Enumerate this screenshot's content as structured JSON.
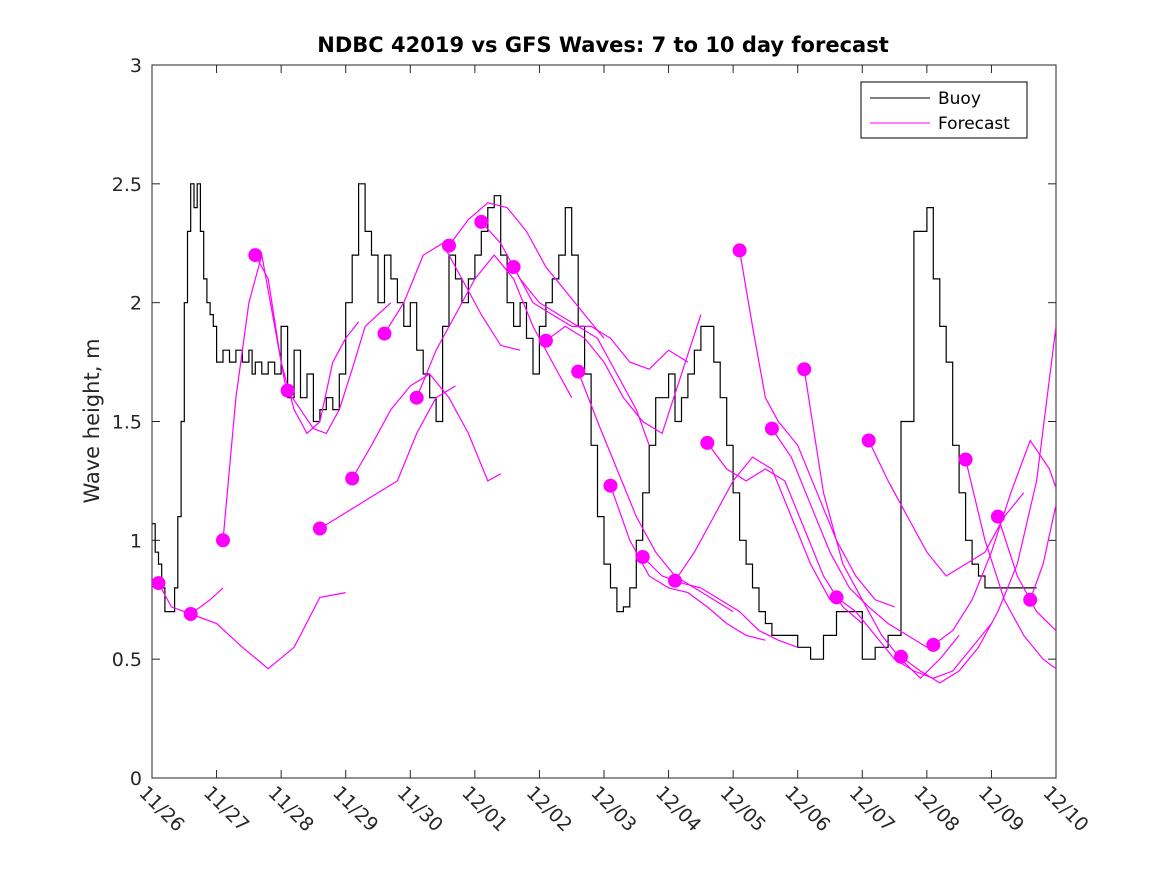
{
  "chart_data": {
    "type": "line",
    "title": "NDBC 42019 vs GFS Waves: 7 to 10 day forecast",
    "ylabel": "Wave height, m",
    "xlabel": "",
    "ylim": [
      0,
      3
    ],
    "yticks": [
      "0",
      "0.5",
      "1",
      "1.5",
      "2",
      "2.5",
      "3"
    ],
    "xlim": [
      0,
      14
    ],
    "xticks": [
      "11/26",
      "11/27",
      "11/28",
      "11/29",
      "11/30",
      "12/01",
      "12/02",
      "12/03",
      "12/04",
      "12/05",
      "12/06",
      "12/07",
      "12/08",
      "12/09",
      "12/10"
    ],
    "legend": {
      "position": "top-right",
      "entries": [
        "Buoy",
        "Forecast"
      ]
    },
    "colors": {
      "buoy": "#000000",
      "forecast": "#ff00ff"
    },
    "series": [
      {
        "name": "Buoy",
        "x": [
          0,
          0.05,
          0.1,
          0.15,
          0.2,
          0.3,
          0.35,
          0.4,
          0.45,
          0.5,
          0.55,
          0.6,
          0.65,
          0.7,
          0.75,
          0.8,
          0.85,
          0.9,
          0.95,
          1.0,
          1.1,
          1.2,
          1.3,
          1.4,
          1.5,
          1.55,
          1.6,
          1.7,
          1.8,
          1.9,
          2.0,
          2.1,
          2.2,
          2.3,
          2.4,
          2.5,
          2.6,
          2.7,
          2.8,
          2.9,
          3.0,
          3.1,
          3.2,
          3.3,
          3.4,
          3.5,
          3.6,
          3.7,
          3.8,
          3.9,
          4.0,
          4.1,
          4.2,
          4.3,
          4.4,
          4.5,
          4.6,
          4.7,
          4.8,
          4.9,
          5.0,
          5.1,
          5.2,
          5.3,
          5.4,
          5.5,
          5.6,
          5.7,
          5.8,
          5.9,
          6.0,
          6.1,
          6.2,
          6.3,
          6.4,
          6.5,
          6.6,
          6.7,
          6.8,
          6.9,
          7.0,
          7.1,
          7.2,
          7.3,
          7.4,
          7.5,
          7.6,
          7.7,
          7.8,
          7.9,
          8.0,
          8.1,
          8.2,
          8.3,
          8.4,
          8.5,
          8.6,
          8.7,
          8.8,
          8.9,
          9.0,
          9.1,
          9.2,
          9.3,
          9.4,
          9.5,
          9.6,
          9.7,
          9.8,
          9.9,
          10.0,
          10.2,
          10.4,
          10.6,
          10.8,
          11.0,
          11.2,
          11.4,
          11.6,
          11.8,
          12.0,
          12.1,
          12.2,
          12.3,
          12.4,
          12.5,
          12.6,
          12.7,
          12.8,
          12.9,
          13.0,
          13.2,
          13.4,
          13.6,
          13.7
        ],
        "values": [
          1.07,
          0.95,
          0.9,
          0.8,
          0.7,
          0.7,
          0.8,
          1.1,
          1.5,
          2.0,
          2.3,
          2.5,
          2.4,
          2.5,
          2.3,
          2.1,
          2.0,
          1.95,
          1.9,
          1.75,
          1.8,
          1.75,
          1.8,
          1.75,
          1.8,
          1.7,
          1.75,
          1.7,
          1.75,
          1.7,
          1.9,
          1.6,
          1.8,
          1.6,
          1.7,
          1.5,
          1.55,
          1.6,
          1.55,
          1.7,
          2.0,
          2.2,
          2.5,
          2.3,
          2.2,
          2.0,
          2.2,
          2.1,
          2.0,
          1.9,
          2.0,
          1.8,
          1.7,
          1.6,
          1.5,
          1.9,
          2.2,
          2.1,
          2.0,
          2.1,
          2.2,
          2.3,
          2.4,
          2.45,
          2.2,
          2.0,
          1.9,
          2.0,
          1.85,
          1.7,
          1.9,
          2.0,
          2.1,
          2.2,
          2.4,
          2.2,
          1.9,
          1.7,
          1.4,
          1.1,
          0.9,
          0.8,
          0.7,
          0.72,
          0.8,
          1.0,
          1.2,
          1.4,
          1.6,
          1.6,
          1.7,
          1.5,
          1.6,
          1.7,
          1.8,
          1.9,
          1.9,
          1.75,
          1.6,
          1.4,
          1.2,
          1.0,
          0.9,
          0.8,
          0.7,
          0.65,
          0.6,
          0.6,
          0.6,
          0.6,
          0.55,
          0.5,
          0.6,
          0.7,
          0.7,
          0.5,
          0.55,
          0.6,
          1.5,
          2.3,
          2.4,
          2.1,
          1.9,
          1.75,
          1.4,
          1.2,
          1.0,
          0.9,
          0.85,
          0.8,
          0.8,
          0.8,
          0.8,
          0.8,
          0.8
        ]
      },
      {
        "name": "Forecast",
        "segments": [
          {
            "x": [
              0.1,
              0.3,
              0.6,
              0.9,
              1.1
            ],
            "values": [
              0.82,
              0.72,
              0.69,
              0.75,
              0.8
            ]
          },
          {
            "x": [
              0.6,
              1.0,
              1.4,
              1.8,
              2.2,
              2.6,
              3.0
            ],
            "values": [
              0.69,
              0.65,
              0.55,
              0.46,
              0.55,
              0.76,
              0.78
            ]
          },
          {
            "x": [
              1.1,
              1.3,
              1.5,
              1.7,
              1.9,
              2.1
            ],
            "values": [
              1.0,
              1.6,
              2.0,
              2.2,
              1.9,
              1.6
            ]
          },
          {
            "x": [
              1.6,
              1.8,
              2.0,
              2.2,
              2.4,
              2.6,
              2.8,
              3.0,
              3.2
            ],
            "values": [
              2.2,
              2.1,
              1.75,
              1.55,
              1.45,
              1.5,
              1.75,
              1.85,
              1.92
            ]
          },
          {
            "x": [
              2.1,
              2.3,
              2.5,
              2.7,
              2.9,
              3.1,
              3.3,
              3.5,
              3.7
            ],
            "values": [
              1.63,
              1.55,
              1.47,
              1.45,
              1.55,
              1.72,
              1.9,
              1.95,
              2.0
            ]
          },
          {
            "x": [
              2.6,
              2.9,
              3.2,
              3.5,
              3.8,
              4.1,
              4.4,
              4.7
            ],
            "values": [
              1.05,
              1.1,
              1.15,
              1.2,
              1.25,
              1.45,
              1.6,
              1.65
            ]
          },
          {
            "x": [
              3.1,
              3.4,
              3.7,
              4.0,
              4.3,
              4.6,
              4.9,
              5.2,
              5.4
            ],
            "values": [
              1.26,
              1.4,
              1.55,
              1.65,
              1.7,
              1.6,
              1.45,
              1.25,
              1.28
            ]
          },
          {
            "x": [
              3.6,
              3.9,
              4.2,
              4.5,
              4.8,
              5.1,
              5.4,
              5.7
            ],
            "values": [
              1.87,
              2.0,
              2.2,
              2.25,
              2.1,
              1.95,
              1.82,
              1.8
            ]
          },
          {
            "x": [
              4.1,
              4.4,
              4.7,
              5.0,
              5.3,
              5.6,
              5.9,
              6.2,
              6.5
            ],
            "values": [
              1.6,
              1.8,
              1.95,
              2.1,
              2.2,
              2.1,
              1.9,
              1.75,
              1.6
            ]
          },
          {
            "x": [
              4.6,
              4.9,
              5.2,
              5.5,
              5.8,
              6.1,
              6.4,
              6.7,
              7.0
            ],
            "values": [
              2.24,
              2.35,
              2.42,
              2.4,
              2.3,
              2.15,
              2.05,
              1.95,
              1.85
            ]
          },
          {
            "x": [
              5.1,
              5.4,
              5.7,
              6.0,
              6.3,
              6.6,
              6.9,
              7.2,
              7.5,
              7.7
            ],
            "values": [
              2.34,
              2.25,
              2.1,
              2.0,
              1.95,
              1.9,
              1.85,
              1.7,
              1.55,
              1.4
            ]
          },
          {
            "x": [
              5.6,
              5.9,
              6.2,
              6.5,
              6.8,
              7.1,
              7.4,
              7.7,
              8.0,
              8.3
            ],
            "values": [
              2.15,
              2.0,
              1.95,
              1.9,
              1.9,
              1.85,
              1.75,
              1.72,
              1.8,
              1.75
            ]
          },
          {
            "x": [
              6.1,
              6.4,
              6.7,
              7.0,
              7.3,
              7.6,
              7.9,
              8.2,
              8.5
            ],
            "values": [
              1.84,
              1.9,
              1.85,
              1.75,
              1.6,
              1.5,
              1.45,
              1.7,
              1.95
            ]
          },
          {
            "x": [
              6.6,
              6.9,
              7.2,
              7.5,
              7.8,
              8.1,
              8.4,
              8.7,
              9.0
            ],
            "values": [
              1.71,
              1.5,
              1.3,
              1.1,
              0.95,
              0.85,
              0.8,
              0.75,
              0.7
            ]
          },
          {
            "x": [
              7.1,
              7.4,
              7.7,
              8.0,
              8.3,
              8.6,
              8.9,
              9.2,
              9.5
            ],
            "values": [
              1.23,
              1.0,
              0.85,
              0.8,
              0.78,
              0.72,
              0.65,
              0.6,
              0.58
            ]
          },
          {
            "x": [
              7.6,
              7.9,
              8.2,
              8.5,
              8.8,
              9.1,
              9.4,
              9.7,
              10.0
            ],
            "values": [
              0.93,
              0.85,
              0.82,
              0.8,
              0.75,
              0.7,
              0.62,
              0.58,
              0.55
            ]
          },
          {
            "x": [
              8.1,
              8.4,
              8.7,
              9.0,
              9.3,
              9.6,
              9.9,
              10.2,
              10.5
            ],
            "values": [
              0.83,
              0.95,
              1.1,
              1.25,
              1.35,
              1.3,
              1.1,
              0.9,
              0.75
            ]
          },
          {
            "x": [
              8.6,
              8.9,
              9.2,
              9.5,
              9.8,
              10.1,
              10.4,
              10.7,
              11.0
            ],
            "values": [
              1.41,
              1.3,
              1.25,
              1.3,
              1.25,
              1.05,
              0.85,
              0.72,
              0.65
            ]
          },
          {
            "x": [
              9.1,
              9.3,
              9.5,
              9.7,
              10.0,
              10.3,
              10.6,
              10.9,
              11.2,
              11.5
            ],
            "values": [
              2.22,
              1.9,
              1.6,
              1.5,
              1.4,
              1.2,
              1.0,
              0.85,
              0.75,
              0.72
            ]
          },
          {
            "x": [
              9.6,
              9.9,
              10.2,
              10.5,
              10.8,
              11.1,
              11.4,
              11.7,
              12.0
            ],
            "values": [
              1.47,
              1.35,
              1.15,
              0.95,
              0.8,
              0.72,
              0.65,
              0.6,
              0.55
            ]
          },
          {
            "x": [
              10.1,
              10.4,
              10.7,
              11.0,
              11.3,
              11.6,
              11.9,
              12.2,
              12.5
            ],
            "values": [
              1.72,
              1.2,
              0.9,
              0.75,
              0.6,
              0.5,
              0.42,
              0.5,
              0.6
            ]
          },
          {
            "x": [
              10.6,
              10.9,
              11.2,
              11.5,
              11.8,
              12.1,
              12.4,
              12.7,
              13.0
            ],
            "values": [
              0.76,
              0.7,
              0.6,
              0.5,
              0.45,
              0.42,
              0.45,
              0.55,
              0.65
            ]
          },
          {
            "x": [
              11.1,
              11.4,
              11.7,
              12.0,
              12.3,
              12.6,
              12.9,
              13.2,
              13.5
            ],
            "values": [
              1.42,
              1.25,
              1.1,
              0.95,
              0.85,
              0.9,
              0.95,
              1.1,
              1.2
            ]
          },
          {
            "x": [
              11.6,
              11.9,
              12.2,
              12.5,
              12.8,
              13.1,
              13.4,
              13.7,
              14.0
            ],
            "values": [
              0.51,
              0.45,
              0.4,
              0.45,
              0.55,
              0.7,
              0.9,
              1.25,
              1.9
            ]
          },
          {
            "x": [
              12.1,
              12.4,
              12.7,
              13.0,
              13.3,
              13.6,
              13.9,
              14.0
            ],
            "values": [
              0.56,
              0.62,
              0.75,
              0.95,
              1.2,
              1.42,
              1.3,
              1.22
            ]
          },
          {
            "x": [
              12.6,
              12.9,
              13.2,
              13.5,
              13.8,
              14.0
            ],
            "values": [
              1.34,
              1.0,
              0.75,
              0.6,
              0.5,
              0.46
            ]
          },
          {
            "x": [
              13.1,
              13.4,
              13.7,
              14.0
            ],
            "values": [
              1.1,
              0.85,
              0.7,
              0.62
            ]
          },
          {
            "x": [
              13.6,
              13.8,
              14.0
            ],
            "values": [
              0.75,
              0.9,
              1.15
            ]
          }
        ]
      }
    ],
    "forecast_markers": {
      "x": [
        0.1,
        0.6,
        1.1,
        1.6,
        2.1,
        2.6,
        3.1,
        3.6,
        4.1,
        4.6,
        5.1,
        5.6,
        6.1,
        6.6,
        7.1,
        7.6,
        8.1,
        8.6,
        9.1,
        9.6,
        10.1,
        10.6,
        11.1,
        11.6,
        12.1,
        12.6,
        13.1,
        13.6
      ],
      "values": [
        0.82,
        0.69,
        1.0,
        2.2,
        1.63,
        1.05,
        1.26,
        1.87,
        1.6,
        2.24,
        2.34,
        2.15,
        1.84,
        1.71,
        1.23,
        0.93,
        0.83,
        1.41,
        2.22,
        1.47,
        1.72,
        0.76,
        1.42,
        0.51,
        0.56,
        1.34,
        1.1,
        0.75
      ]
    }
  }
}
